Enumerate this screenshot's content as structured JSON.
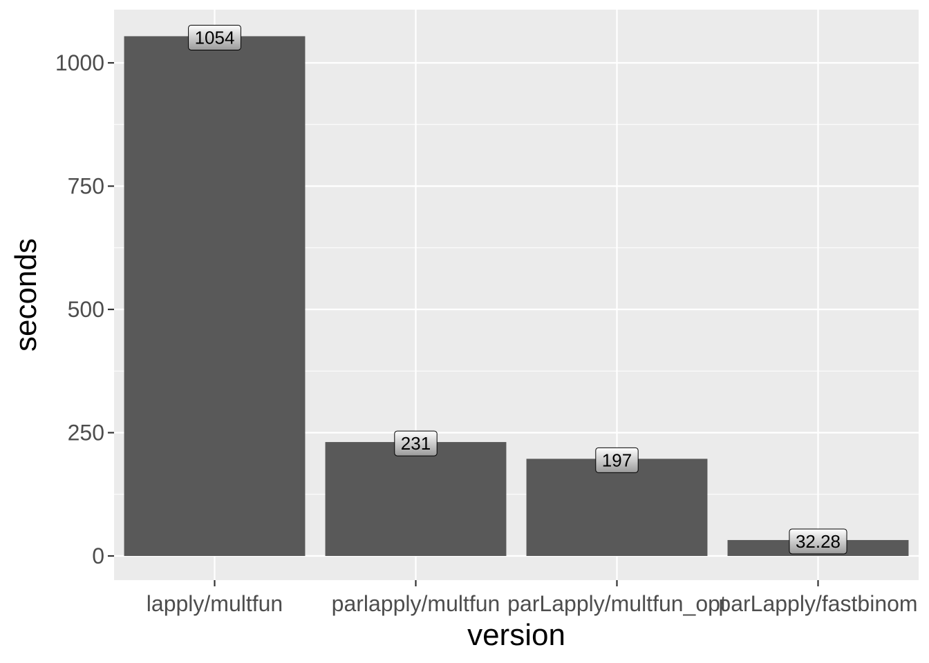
{
  "chart_data": {
    "type": "bar",
    "title": "",
    "xlabel": "version",
    "ylabel": "seconds",
    "categories": [
      "lapply/multfun",
      "parlapply/multfun",
      "parLapply/multfun_opt",
      "parLapply/fastbinom"
    ],
    "values": [
      1054,
      231,
      197,
      32.28
    ],
    "data_labels": [
      "1054",
      "231",
      "197",
      "32.28"
    ],
    "yticks": [
      0,
      250,
      500,
      750,
      1000
    ],
    "ylim": [
      0,
      1106.7
    ],
    "grid": true,
    "colors": {
      "panel": "#ebebeb",
      "grid": "#ffffff",
      "bar": "#595959",
      "label_fill": "#ffffff",
      "label_stroke": "#000000"
    }
  }
}
